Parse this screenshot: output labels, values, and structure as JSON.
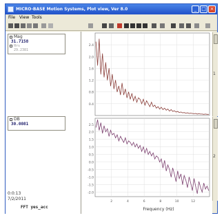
{
  "window": {
    "title": "MICRO-BASE Motion Systems, Plot view, Ver 8.0"
  },
  "menu": [
    "File",
    "View",
    "Tools"
  ],
  "legend_top": {
    "series1_name": "Mag",
    "series1_value": "31.7158",
    "series2_name": "Hrs",
    "series2_value": "29.2381"
  },
  "legend_bottom": {
    "series_name": "DB",
    "series_value": "30.0081"
  },
  "status": {
    "line1": "0:0:13",
    "line2": "7/2/2011",
    "file_label": "FFT yes_acc"
  },
  "plot_top": {
    "y_ticks": [
      "2.4",
      "2.0",
      "1.6",
      "1.2",
      "0.8",
      "0.4"
    ],
    "side_label": "1"
  },
  "plot_bottom": {
    "y_ticks": [
      "2.5",
      "2.0",
      "1.5",
      "1.0",
      "0.5",
      "0.0",
      "-0.5",
      "-1.0",
      "-1.5",
      "-2.0"
    ],
    "side_label": "2"
  },
  "x_axis": {
    "ticks": [
      "2",
      "4",
      "6",
      "8",
      "10",
      "12"
    ],
    "label": "Frequency (Hz)"
  },
  "colors": {
    "trace": "#7b3f6e",
    "trace_top": "#8a3d38",
    "grid": "#d7d7d7"
  },
  "chart_data": [
    {
      "type": "line",
      "x": [
        0.1,
        0.3,
        0.5,
        0.7,
        0.9,
        1.1,
        1.3,
        1.5,
        1.7,
        1.9,
        2.1,
        2.3,
        2.5,
        2.7,
        2.9,
        3.1,
        3.3,
        3.5,
        3.7,
        3.9,
        4.1,
        4.3,
        4.5,
        4.7,
        4.9,
        5.1,
        5.3,
        5.5,
        5.7,
        5.9,
        6.1,
        6.3,
        6.5,
        6.7,
        6.9,
        7.1,
        7.3,
        7.5,
        7.7,
        7.9,
        8.1,
        8.3,
        8.5,
        8.7,
        8.9,
        9.1,
        9.3,
        9.5,
        9.7,
        9.9,
        10.1,
        10.3,
        10.5,
        10.7,
        10.9,
        11.1,
        11.3,
        11.5,
        11.7,
        11.9,
        12.1,
        12.3,
        12.5,
        12.7,
        12.9,
        13.1,
        13.3,
        13.5,
        13.7,
        13.9
      ],
      "series": [
        {
          "values": [
            2.5,
            1.7,
            2.6,
            1.4,
            2.1,
            1.3,
            1.8,
            1.2,
            1.6,
            1.0,
            1.4,
            0.9,
            1.2,
            0.8,
            1.0,
            0.7,
            1.1,
            0.7,
            0.9,
            0.6,
            0.8,
            0.55,
            0.75,
            0.5,
            0.65,
            0.45,
            0.6,
            0.55,
            0.4,
            0.55,
            0.35,
            0.5,
            0.4,
            0.3,
            0.45,
            0.3,
            0.35,
            0.25,
            0.3,
            0.22,
            0.28,
            0.2,
            0.25,
            0.18,
            0.22,
            0.15,
            0.2,
            0.14,
            0.16,
            0.12,
            0.14,
            0.1,
            0.12,
            0.09,
            0.1,
            0.08,
            0.09,
            0.07,
            0.08,
            0.07,
            0.06,
            0.07,
            0.05,
            0.06,
            0.05,
            0.05,
            0.04,
            0.05,
            0.04,
            0.04
          ]
        }
      ],
      "ylim": [
        0,
        2.8
      ]
    },
    {
      "type": "line",
      "x": [
        0.1,
        0.3,
        0.5,
        0.7,
        0.9,
        1.1,
        1.3,
        1.5,
        1.7,
        1.9,
        2.1,
        2.3,
        2.5,
        2.7,
        2.9,
        3.1,
        3.3,
        3.5,
        3.7,
        3.9,
        4.1,
        4.3,
        4.5,
        4.7,
        4.9,
        5.1,
        5.3,
        5.5,
        5.7,
        5.9,
        6.1,
        6.3,
        6.5,
        6.7,
        6.9,
        7.1,
        7.3,
        7.5,
        7.7,
        7.9,
        8.1,
        8.3,
        8.5,
        8.7,
        8.9,
        9.1,
        9.3,
        9.5,
        9.7,
        9.9,
        10.1,
        10.3,
        10.5,
        10.7,
        10.9,
        11.1,
        11.3,
        11.5,
        11.7,
        11.9,
        12.1,
        12.3,
        12.5,
        12.7,
        12.9,
        13.1,
        13.3,
        13.5,
        13.7,
        13.9
      ],
      "series": [
        {
          "values": [
            2.3,
            2.8,
            2.1,
            2.6,
            1.9,
            2.4,
            2.0,
            2.2,
            1.7,
            2.1,
            1.8,
            1.9,
            1.6,
            1.8,
            1.4,
            1.7,
            1.5,
            1.3,
            1.6,
            1.2,
            1.4,
            1.3,
            1.1,
            1.3,
            1.0,
            1.2,
            0.9,
            1.1,
            0.7,
            1.0,
            0.6,
            0.9,
            0.5,
            0.7,
            0.4,
            0.6,
            0.2,
            0.4,
            0.3,
            0.0,
            0.2,
            -0.4,
            0.1,
            -0.6,
            -0.2,
            -0.5,
            -1.0,
            -0.4,
            -0.8,
            -1.3,
            -0.6,
            -1.1,
            -0.8,
            -1.5,
            -0.9,
            -1.2,
            -1.7,
            -1.0,
            -1.4,
            -1.9,
            -1.1,
            -1.6,
            -2.1,
            -1.3,
            -1.7,
            -2.0,
            -1.4,
            -1.8,
            -1.6,
            -1.9
          ]
        }
      ],
      "ylim": [
        -2.3,
        2.9
      ]
    }
  ]
}
